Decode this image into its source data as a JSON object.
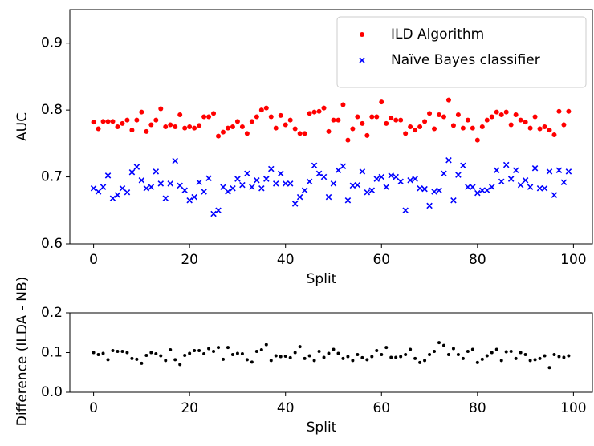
{
  "chart_data": [
    {
      "type": "scatter",
      "x_label": "Split",
      "y_label": "AUC",
      "x": [
        0,
        1,
        2,
        3,
        4,
        5,
        6,
        7,
        8,
        9,
        10,
        11,
        12,
        13,
        14,
        15,
        16,
        17,
        18,
        19,
        20,
        21,
        22,
        23,
        24,
        25,
        26,
        27,
        28,
        29,
        30,
        31,
        32,
        33,
        34,
        35,
        36,
        37,
        38,
        39,
        40,
        41,
        42,
        43,
        44,
        45,
        46,
        47,
        48,
        49,
        50,
        51,
        52,
        53,
        54,
        55,
        56,
        57,
        58,
        59,
        60,
        61,
        62,
        63,
        64,
        65,
        66,
        67,
        68,
        69,
        70,
        71,
        72,
        73,
        74,
        75,
        76,
        77,
        78,
        79,
        80,
        81,
        82,
        83,
        84,
        85,
        86,
        87,
        88,
        89,
        90,
        91,
        92,
        93,
        94,
        95,
        96,
        97,
        98,
        99
      ],
      "series": [
        {
          "name": "ILD Algorithm",
          "color": "#ff0000",
          "marker": "o",
          "values": [
            0.782,
            0.772,
            0.783,
            0.783,
            0.783,
            0.775,
            0.78,
            0.785,
            0.77,
            0.785,
            0.797,
            0.768,
            0.778,
            0.785,
            0.802,
            0.775,
            0.778,
            0.775,
            0.793,
            0.773,
            0.775,
            0.773,
            0.777,
            0.79,
            0.79,
            0.795,
            0.761,
            0.767,
            0.773,
            0.775,
            0.783,
            0.775,
            0.765,
            0.783,
            0.79,
            0.8,
            0.803,
            0.79,
            0.773,
            0.792,
            0.778,
            0.785,
            0.772,
            0.765,
            0.765,
            0.795,
            0.797,
            0.798,
            0.803,
            0.768,
            0.785,
            0.785,
            0.808,
            0.755,
            0.772,
            0.79,
            0.78,
            0.762,
            0.79,
            0.79,
            0.812,
            0.78,
            0.788,
            0.785,
            0.785,
            0.765,
            0.775,
            0.77,
            0.775,
            0.783,
            0.795,
            0.772,
            0.793,
            0.79,
            0.815,
            0.777,
            0.793,
            0.773,
            0.785,
            0.773,
            0.755,
            0.775,
            0.785,
            0.79,
            0.797,
            0.793,
            0.797,
            0.778,
            0.793,
            0.785,
            0.782,
            0.773,
            0.79,
            0.772,
            0.775,
            0.77,
            0.763,
            0.798,
            0.778,
            0.798
          ]
        },
        {
          "name": "Naïve Bayes classifier",
          "color": "#0000ff",
          "marker": "x",
          "values": [
            0.683,
            0.678,
            0.685,
            0.702,
            0.668,
            0.673,
            0.683,
            0.677,
            0.707,
            0.715,
            0.695,
            0.683,
            0.685,
            0.708,
            0.69,
            0.668,
            0.69,
            0.724,
            0.687,
            0.68,
            0.665,
            0.67,
            0.692,
            0.678,
            0.698,
            0.645,
            0.65,
            0.685,
            0.678,
            0.683,
            0.697,
            0.688,
            0.705,
            0.685,
            0.695,
            0.683,
            0.697,
            0.712,
            0.69,
            0.705,
            0.69,
            0.69,
            0.66,
            0.67,
            0.68,
            0.693,
            0.717,
            0.705,
            0.7,
            0.67,
            0.69,
            0.71,
            0.716,
            0.665,
            0.687,
            0.688,
            0.708,
            0.677,
            0.68,
            0.697,
            0.7,
            0.685,
            0.702,
            0.7,
            0.693,
            0.65,
            0.695,
            0.697,
            0.683,
            0.682,
            0.657,
            0.678,
            0.68,
            0.705,
            0.725,
            0.665,
            0.703,
            0.717,
            0.685,
            0.685,
            0.676,
            0.68,
            0.68,
            0.685,
            0.71,
            0.693,
            0.718,
            0.697,
            0.71,
            0.688,
            0.695,
            0.685,
            0.713,
            0.683,
            0.683,
            0.708,
            0.673,
            0.71,
            0.692,
            0.708
          ]
        }
      ],
      "xlim": [
        -4.95,
        103.95
      ],
      "xticks": [
        0,
        20,
        40,
        60,
        80,
        100
      ],
      "ylim": [
        0.6,
        0.95
      ],
      "yticks": [
        0.6,
        0.7,
        0.8,
        0.9
      ],
      "legend": "upper right",
      "grid": false
    },
    {
      "type": "scatter",
      "x_label": "Split",
      "y_label": "Difference (ILDA - NB)",
      "x": [
        0,
        1,
        2,
        3,
        4,
        5,
        6,
        7,
        8,
        9,
        10,
        11,
        12,
        13,
        14,
        15,
        16,
        17,
        18,
        19,
        20,
        21,
        22,
        23,
        24,
        25,
        26,
        27,
        28,
        29,
        30,
        31,
        32,
        33,
        34,
        35,
        36,
        37,
        38,
        39,
        40,
        41,
        42,
        43,
        44,
        45,
        46,
        47,
        48,
        49,
        50,
        51,
        52,
        53,
        54,
        55,
        56,
        57,
        58,
        59,
        60,
        61,
        62,
        63,
        64,
        65,
        66,
        67,
        68,
        69,
        70,
        71,
        72,
        73,
        74,
        75,
        76,
        77,
        78,
        79,
        80,
        81,
        82,
        83,
        84,
        85,
        86,
        87,
        88,
        89,
        90,
        91,
        92,
        93,
        94,
        95,
        96,
        97,
        98,
        99
      ],
      "series": [
        {
          "color": "#000000",
          "marker": ".",
          "values": [
            0.1,
            0.095,
            0.098,
            0.082,
            0.105,
            0.103,
            0.103,
            0.1,
            0.085,
            0.083,
            0.073,
            0.093,
            0.1,
            0.097,
            0.092,
            0.08,
            0.107,
            0.082,
            0.07,
            0.093,
            0.098,
            0.105,
            0.105,
            0.097,
            0.11,
            0.103,
            0.113,
            0.083,
            0.113,
            0.095,
            0.098,
            0.097,
            0.082,
            0.076,
            0.103,
            0.107,
            0.12,
            0.08,
            0.092,
            0.09,
            0.091,
            0.087,
            0.1,
            0.115,
            0.085,
            0.092,
            0.08,
            0.103,
            0.088,
            0.098,
            0.108,
            0.098,
            0.085,
            0.09,
            0.08,
            0.095,
            0.087,
            0.082,
            0.09,
            0.105,
            0.095,
            0.113,
            0.088,
            0.088,
            0.09,
            0.095,
            0.108,
            0.085,
            0.075,
            0.08,
            0.095,
            0.103,
            0.125,
            0.118,
            0.095,
            0.11,
            0.095,
            0.085,
            0.103,
            0.108,
            0.075,
            0.083,
            0.092,
            0.1,
            0.108,
            0.08,
            0.102,
            0.103,
            0.085,
            0.1,
            0.095,
            0.08,
            0.082,
            0.085,
            0.092,
            0.062,
            0.095,
            0.09,
            0.088,
            0.092
          ]
        }
      ],
      "xlim": [
        -4.95,
        103.95
      ],
      "xticks": [
        0,
        20,
        40,
        60,
        80,
        100
      ],
      "ylim": [
        0,
        0.2
      ],
      "yticks": [
        {
          "value": 0,
          "label": "0.0"
        },
        0.1,
        0.2
      ],
      "grid": false
    }
  ]
}
